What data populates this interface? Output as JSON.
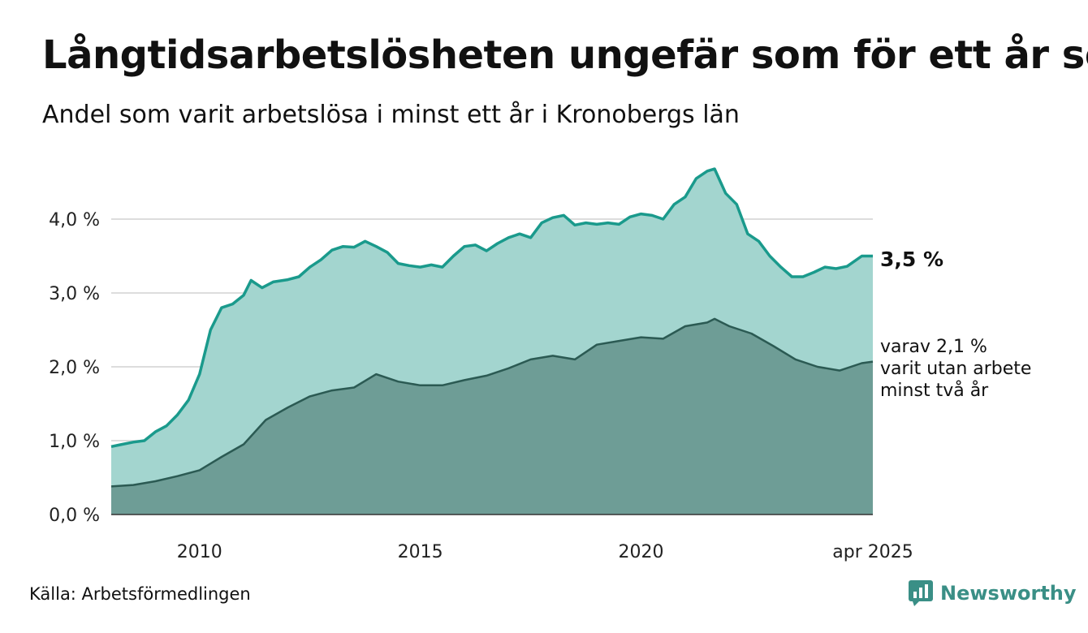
{
  "header": {
    "title": "Långtidsarbetslösheten ungefär som för ett år sen",
    "subtitle": "Andel som varit arbetslösa i minst ett år i Kronobergs län"
  },
  "footer": {
    "source": "Källa: Arbetsförmedlingen",
    "brand": "Newsworthy"
  },
  "colors": {
    "total_fill": "#a3d5cf",
    "total_line": "#1a9a8c",
    "two_year_fill": "#6e9d96",
    "two_year_line": "#2b5a53",
    "grid": "#dddddd",
    "brand": "#3a8f86"
  },
  "chart_data": {
    "type": "area",
    "title": "Långtidsarbetslösheten ungefär som för ett år sen",
    "subtitle": "Andel som varit arbetslösa i minst ett år i Kronobergs län",
    "xlim": [
      "2008-01",
      "2025-04"
    ],
    "ylim": [
      0,
      4.6
    ],
    "y_ticks": [
      0,
      1,
      2,
      3,
      4
    ],
    "y_tick_labels": [
      "0,0 %",
      "1,0 %",
      "2,0 %",
      "3,0 %",
      "4,0 %"
    ],
    "x_tick_labels": [
      {
        "date": "2010-01",
        "label": "2010"
      },
      {
        "date": "2015-01",
        "label": "2015"
      },
      {
        "date": "2020-01",
        "label": "2020"
      },
      {
        "date": "2025-04",
        "label": "apr 2025"
      }
    ],
    "grid": "horizontal",
    "legend": "none",
    "annotations": {
      "total_label": "3,5 %",
      "two_year_lines": [
        "varav 2,1 %",
        "varit utan arbete",
        "minst två år"
      ]
    },
    "series": [
      {
        "points": [
          [
            "2008-01",
            0.92
          ],
          [
            "2008-04",
            0.95
          ],
          [
            "2008-07",
            0.98
          ],
          [
            "2008-10",
            1.0
          ],
          [
            "2009-01",
            1.12
          ],
          [
            "2009-04",
            1.2
          ],
          [
            "2009-07",
            1.35
          ],
          [
            "2009-10",
            1.55
          ],
          [
            "2010-01",
            1.9
          ],
          [
            "2010-04",
            2.5
          ],
          [
            "2010-07",
            2.8
          ],
          [
            "2010-10",
            2.85
          ],
          [
            "2011-01",
            2.97
          ],
          [
            "2011-03",
            3.17
          ],
          [
            "2011-06",
            3.07
          ],
          [
            "2011-09",
            3.15
          ],
          [
            "2012-01",
            3.18
          ],
          [
            "2012-04",
            3.22
          ],
          [
            "2012-07",
            3.35
          ],
          [
            "2012-10",
            3.45
          ],
          [
            "2013-01",
            3.58
          ],
          [
            "2013-04",
            3.63
          ],
          [
            "2013-07",
            3.62
          ],
          [
            "2013-10",
            3.7
          ],
          [
            "2014-01",
            3.63
          ],
          [
            "2014-04",
            3.55
          ],
          [
            "2014-07",
            3.4
          ],
          [
            "2014-10",
            3.37
          ],
          [
            "2015-01",
            3.35
          ],
          [
            "2015-04",
            3.38
          ],
          [
            "2015-07",
            3.35
          ],
          [
            "2015-10",
            3.5
          ],
          [
            "2016-01",
            3.63
          ],
          [
            "2016-04",
            3.65
          ],
          [
            "2016-07",
            3.57
          ],
          [
            "2016-10",
            3.67
          ],
          [
            "2017-01",
            3.75
          ],
          [
            "2017-04",
            3.8
          ],
          [
            "2017-07",
            3.75
          ],
          [
            "2017-10",
            3.95
          ],
          [
            "2018-01",
            4.02
          ],
          [
            "2018-04",
            4.05
          ],
          [
            "2018-07",
            3.92
          ],
          [
            "2018-10",
            3.95
          ],
          [
            "2019-01",
            3.93
          ],
          [
            "2019-04",
            3.95
          ],
          [
            "2019-07",
            3.93
          ],
          [
            "2019-10",
            4.03
          ],
          [
            "2020-01",
            4.07
          ],
          [
            "2020-04",
            4.05
          ],
          [
            "2020-07",
            4.0
          ],
          [
            "2020-10",
            4.2
          ],
          [
            "2021-01",
            4.3
          ],
          [
            "2021-04",
            4.55
          ],
          [
            "2021-07",
            4.65
          ],
          [
            "2021-09",
            4.68
          ],
          [
            "2021-12",
            4.35
          ],
          [
            "2022-03",
            4.2
          ],
          [
            "2022-06",
            3.8
          ],
          [
            "2022-09",
            3.7
          ],
          [
            "2022-12",
            3.5
          ],
          [
            "2023-03",
            3.35
          ],
          [
            "2023-06",
            3.22
          ],
          [
            "2023-09",
            3.22
          ],
          [
            "2023-12",
            3.28
          ],
          [
            "2024-03",
            3.35
          ],
          [
            "2024-06",
            3.33
          ],
          [
            "2024-09",
            3.36
          ],
          [
            "2025-01",
            3.5
          ],
          [
            "2025-04",
            3.5
          ]
        ]
      },
      {
        "points": [
          [
            "2008-01",
            0.38
          ],
          [
            "2008-07",
            0.4
          ],
          [
            "2009-01",
            0.45
          ],
          [
            "2009-07",
            0.52
          ],
          [
            "2010-01",
            0.6
          ],
          [
            "2010-07",
            0.78
          ],
          [
            "2011-01",
            0.95
          ],
          [
            "2011-07",
            1.28
          ],
          [
            "2012-01",
            1.45
          ],
          [
            "2012-07",
            1.6
          ],
          [
            "2013-01",
            1.68
          ],
          [
            "2013-07",
            1.72
          ],
          [
            "2014-01",
            1.9
          ],
          [
            "2014-07",
            1.8
          ],
          [
            "2015-01",
            1.75
          ],
          [
            "2015-07",
            1.75
          ],
          [
            "2016-01",
            1.82
          ],
          [
            "2016-07",
            1.88
          ],
          [
            "2017-01",
            1.98
          ],
          [
            "2017-07",
            2.1
          ],
          [
            "2018-01",
            2.15
          ],
          [
            "2018-07",
            2.1
          ],
          [
            "2019-01",
            2.3
          ],
          [
            "2019-07",
            2.35
          ],
          [
            "2020-01",
            2.4
          ],
          [
            "2020-07",
            2.38
          ],
          [
            "2021-01",
            2.55
          ],
          [
            "2021-07",
            2.6
          ],
          [
            "2021-09",
            2.65
          ],
          [
            "2022-01",
            2.55
          ],
          [
            "2022-07",
            2.45
          ],
          [
            "2023-01",
            2.28
          ],
          [
            "2023-07",
            2.1
          ],
          [
            "2024-01",
            2.0
          ],
          [
            "2024-07",
            1.95
          ],
          [
            "2025-01",
            2.05
          ],
          [
            "2025-04",
            2.07
          ]
        ]
      }
    ]
  }
}
